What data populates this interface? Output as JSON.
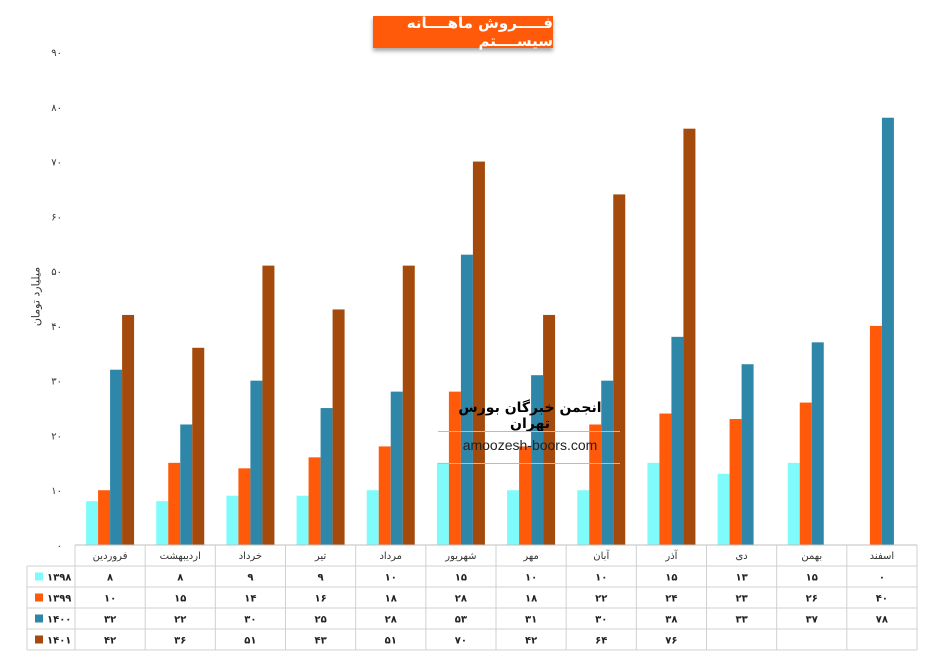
{
  "chart_data": {
    "type": "bar",
    "title": "فـــــروش ماهــــانه سیســــتم",
    "ylabel": "میلیارد تومان",
    "ylim": [
      0,
      90
    ],
    "yticks": [
      "۰",
      "۱۰",
      "۲۰",
      "۳۰",
      "۴۰",
      "۵۰",
      "۶۰",
      "۷۰",
      "۸۰",
      "۹۰"
    ],
    "categories": [
      "فروردین",
      "اردیبهشت",
      "خرداد",
      "تیر",
      "مرداد",
      "شهریور",
      "مهر",
      "آبان",
      "آذر",
      "دی",
      "بهمن",
      "اسفند"
    ],
    "series": [
      {
        "name": "۱۳۹۸",
        "color": "#7ffbfb",
        "values": [
          8,
          8,
          9,
          9,
          10,
          15,
          10,
          10,
          15,
          13,
          15,
          0
        ],
        "labels": [
          "۸",
          "۸",
          "۹",
          "۹",
          "۱۰",
          "۱۵",
          "۱۰",
          "۱۰",
          "۱۵",
          "۱۳",
          "۱۵",
          "۰"
        ]
      },
      {
        "name": "۱۳۹۹",
        "color": "#ff5a0a",
        "values": [
          10,
          15,
          14,
          16,
          18,
          28,
          18,
          22,
          24,
          23,
          26,
          40
        ],
        "labels": [
          "۱۰",
          "۱۵",
          "۱۴",
          "۱۶",
          "۱۸",
          "۲۸",
          "۱۸",
          "۲۲",
          "۲۴",
          "۲۳",
          "۲۶",
          "۴۰"
        ]
      },
      {
        "name": "۱۴۰۰",
        "color": "#2e86a8",
        "values": [
          32,
          22,
          30,
          25,
          28,
          53,
          31,
          30,
          38,
          33,
          37,
          78
        ],
        "labels": [
          "۳۲",
          "۲۲",
          "۳۰",
          "۲۵",
          "۲۸",
          "۵۳",
          "۳۱",
          "۳۰",
          "۳۸",
          "۳۳",
          "۳۷",
          "۷۸"
        ]
      },
      {
        "name": "۱۴۰۱",
        "color": "#a34a0c",
        "values": [
          42,
          36,
          51,
          43,
          51,
          70,
          42,
          64,
          76,
          null,
          null,
          null
        ],
        "labels": [
          "۴۲",
          "۳۶",
          "۵۱",
          "۴۳",
          "۵۱",
          "۷۰",
          "۴۲",
          "۶۴",
          "۷۶",
          "",
          "",
          ""
        ]
      }
    ],
    "legend": "data-table",
    "grid": false
  },
  "watermark": {
    "title": "انجمن خبرگان بورس تهران",
    "url": "amoozesh-boors.com"
  }
}
